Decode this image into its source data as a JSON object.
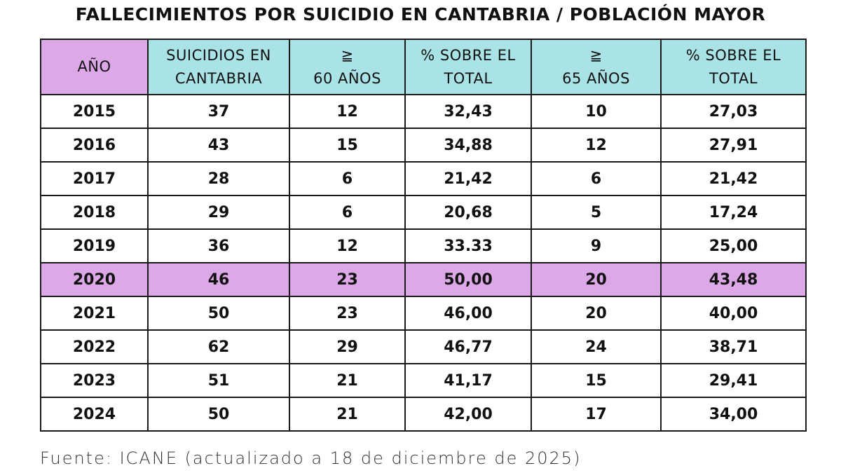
{
  "title": "FALLECIMIENTOS POR SUICIDIO EN CANTABRIA / POBLACIÓN MAYOR",
  "colors": {
    "purple": "#dca8e8",
    "cyan": "#a9e3e6"
  },
  "headers": [
    {
      "line1": "AÑO",
      "line2": ""
    },
    {
      "line1": "SUICIDIOS EN",
      "line2": "CANTABRIA"
    },
    {
      "line1": "≧",
      "line2": "60 AÑOS"
    },
    {
      "line1": "% SOBRE EL",
      "line2": "TOTAL"
    },
    {
      "line1": "≧",
      "line2": "65 AÑOS"
    },
    {
      "line1": "% SOBRE EL",
      "line2": "TOTAL"
    }
  ],
  "rows": [
    [
      "2015",
      "37",
      "12",
      "32,43",
      "10",
      "27,03"
    ],
    [
      "2016",
      "43",
      "15",
      "34,88",
      "12",
      "27,91"
    ],
    [
      "2017",
      "28",
      "6",
      "21,42",
      "6",
      "21,42"
    ],
    [
      "2018",
      "29",
      "6",
      "20,68",
      "5",
      "17,24"
    ],
    [
      "2019",
      "36",
      "12",
      "33.33",
      "9",
      "25,00"
    ],
    [
      "2020",
      "46",
      "23",
      "50,00",
      "20",
      "43,48"
    ],
    [
      "2021",
      "50",
      "23",
      "46,00",
      "20",
      "40,00"
    ],
    [
      "2022",
      "62",
      "29",
      "46,77",
      "24",
      "38,71"
    ],
    [
      "2023",
      "51",
      "21",
      "41,17",
      "15",
      "29,41"
    ],
    [
      "2024",
      "50",
      "21",
      "42,00",
      "17",
      "34,00"
    ]
  ],
  "highlight_year": "2020",
  "source": "Fuente: ICANE (actualizado a 18 de diciembre de 2025)"
}
